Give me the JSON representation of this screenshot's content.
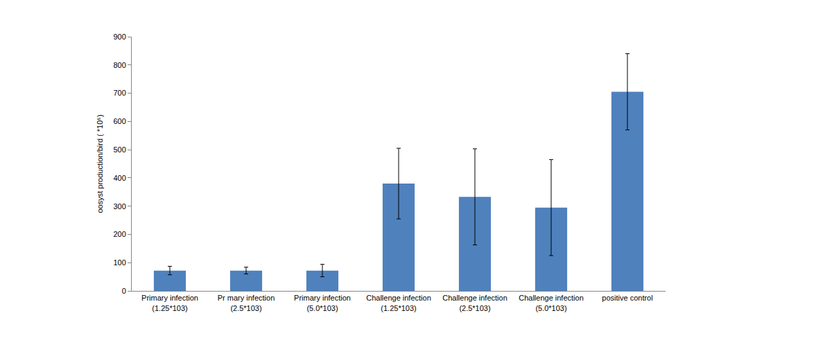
{
  "chart_data": {
    "type": "bar",
    "y_label": "oosyst production/bird ( *10⁶)",
    "categories": [
      "Primary infection (1.25*103)",
      "Pr mary infection (2.5*103)",
      "Primary infection (5.0*103)",
      "Challenge infection (1.25*103)",
      "Challenge infection (2.5*103)",
      "Challenge infection (5.0*103)",
      "positive control"
    ],
    "values": [
      72,
      72,
      72,
      380,
      333,
      295,
      705
    ],
    "errors": [
      15,
      12,
      22,
      125,
      170,
      170,
      135
    ],
    "color": "#4f81bd",
    "ylim": [
      0,
      900
    ],
    "yticks": [
      0,
      100,
      200,
      300,
      400,
      500,
      600,
      700,
      800,
      900
    ],
    "grid": false
  }
}
